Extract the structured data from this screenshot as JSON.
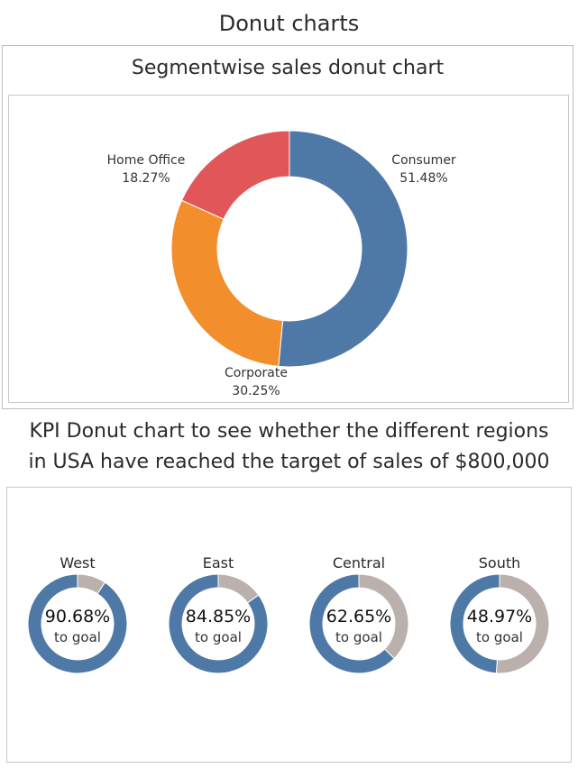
{
  "page_title": "Donut charts",
  "colors": {
    "consumer": "#4e79a7",
    "corporate": "#f28e2b",
    "home_office": "#e15759",
    "kpi_achieved": "#4e79a7",
    "kpi_remaining": "#bab0ac"
  },
  "chart_data": [
    {
      "type": "pie",
      "title": "Segmentwise sales donut chart",
      "slices": [
        {
          "label": "Consumer",
          "value": 51.48,
          "display": "51.48%"
        },
        {
          "label": "Corporate",
          "value": 30.25,
          "display": "30.25%"
        },
        {
          "label": "Home Office",
          "value": 18.27,
          "display": "18.27%"
        }
      ]
    },
    {
      "type": "pie",
      "title_lines": [
        "KPI Donut chart to see whether the different regions",
        "in USA have reached the target of sales of $800,000"
      ],
      "goal_label": "to goal",
      "regions": [
        {
          "name": "West",
          "value": 90.68,
          "display": "90.68%"
        },
        {
          "name": "East",
          "value": 84.85,
          "display": "84.85%"
        },
        {
          "name": "Central",
          "value": 62.65,
          "display": "62.65%"
        },
        {
          "name": "South",
          "value": 48.97,
          "display": "48.97%"
        }
      ]
    }
  ]
}
